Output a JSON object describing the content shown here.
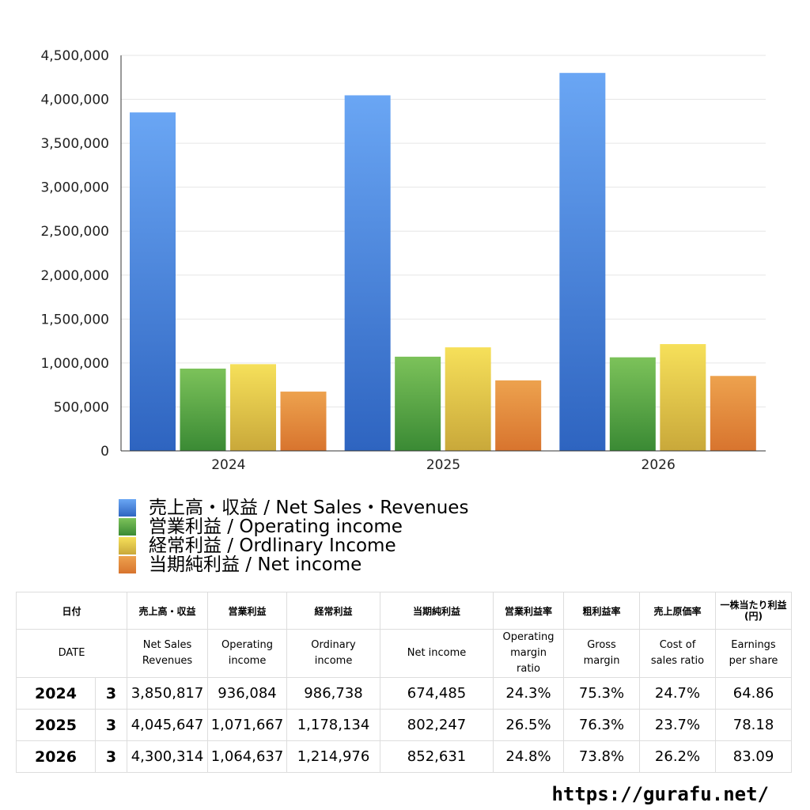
{
  "chart_data": {
    "type": "bar",
    "categories": [
      "2024",
      "2025",
      "2026"
    ],
    "series": [
      {
        "name": "売上高・収益 / Net Sales・Revenues",
        "values": [
          3850817,
          4045647,
          4300314
        ],
        "color_top": "#6aa6f4",
        "color_bottom": "#2e64c0"
      },
      {
        "name": "営業利益 / Operating income",
        "values": [
          936084,
          1071667,
          1064637
        ],
        "color_top": "#7cc25a",
        "color_bottom": "#3a8a34"
      },
      {
        "name": "経常利益 / Ordlinary Income",
        "values": [
          986738,
          1178134,
          1214976
        ],
        "color_top": "#f6e05a",
        "color_bottom": "#c9a83a"
      },
      {
        "name": "当期純利益 / Net income",
        "values": [
          674485,
          802247,
          852631
        ],
        "color_top": "#eda24e",
        "color_bottom": "#d8742e"
      }
    ],
    "ylim": [
      0,
      4500000
    ],
    "yticks": [
      0,
      500000,
      1000000,
      1500000,
      2000000,
      2500000,
      3000000,
      3500000,
      4000000,
      4500000
    ],
    "ytick_labels": [
      "0",
      "500,000",
      "1,000,000",
      "1,500,000",
      "2,000,000",
      "2,500,000",
      "3,000,000",
      "3,500,000",
      "4,000,000",
      "4,500,000"
    ],
    "grid": true,
    "legend_position": "bottom-left"
  },
  "legend": [
    {
      "label": "売上高・収益 / Net Sales・Revenues",
      "color": "#4a86de"
    },
    {
      "label": "営業利益 / Operating income",
      "color": "#55a544"
    },
    {
      "label": "経常利益 / Ordlinary Income",
      "color": "#e4c64a"
    },
    {
      "label": "当期純利益 / Net income",
      "color": "#e48a3e"
    }
  ],
  "table": {
    "headers_ja": [
      "日付",
      "売上高・収益",
      "営業利益",
      "経常利益",
      "当期純利益",
      "営業利益率",
      "粗利益率",
      "売上原価率",
      "一株当たり利益",
      "(円)"
    ],
    "headers_en": [
      "DATE",
      "Net Sales",
      "Revenues",
      "Operating",
      "income",
      "Ordinary",
      "income",
      "Net income",
      "Operating",
      "margin",
      "ratio",
      "Gross",
      "margin",
      "Cost of",
      "sales ratio",
      "Earnings",
      "per share"
    ],
    "rows": [
      {
        "year": "2024",
        "month": "3",
        "sales": "3,850,817",
        "operating": "936,084",
        "ordinary": "986,738",
        "net": "674,485",
        "op_margin": "24.3%",
        "gross_margin": "75.3%",
        "cost_ratio": "24.7%",
        "eps": "64.86"
      },
      {
        "year": "2025",
        "month": "3",
        "sales": "4,045,647",
        "operating": "1,071,667",
        "ordinary": "1,178,134",
        "net": "802,247",
        "op_margin": "26.5%",
        "gross_margin": "76.3%",
        "cost_ratio": "23.7%",
        "eps": "78.18"
      },
      {
        "year": "2026",
        "month": "3",
        "sales": "4,300,314",
        "operating": "1,064,637",
        "ordinary": "1,214,976",
        "net": "852,631",
        "op_margin": "24.8%",
        "gross_margin": "73.8%",
        "cost_ratio": "26.2%",
        "eps": "83.09"
      }
    ]
  },
  "site_url": "https://gurafu.net/"
}
